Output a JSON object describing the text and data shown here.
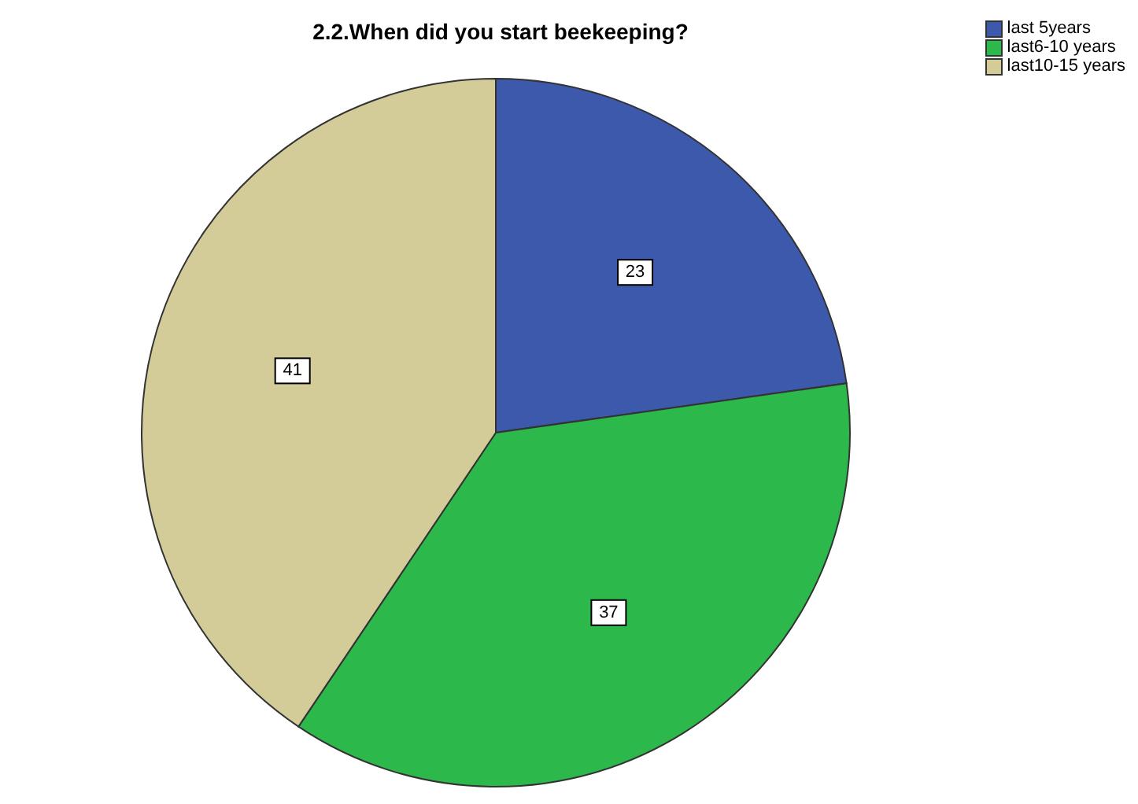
{
  "chart_data": {
    "type": "pie",
    "title": "2.2.When did you start beekeeping?",
    "categories": [
      "last 5years",
      "last6-10 years",
      "last10-15 years"
    ],
    "values": [
      23,
      37,
      41
    ],
    "colors": [
      "#3d59ab",
      "#2db84b",
      "#d3cc98"
    ],
    "data_labels": true,
    "legend": "top right"
  }
}
